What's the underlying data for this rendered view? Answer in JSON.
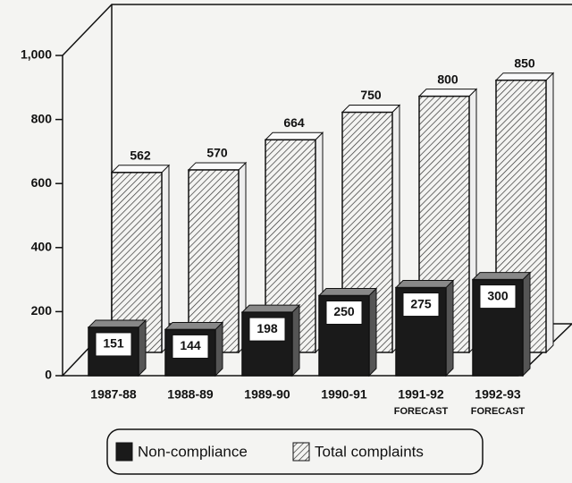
{
  "chart_data": {
    "type": "bar3d",
    "categories": [
      "1987-88",
      "1988-89",
      "1989-90",
      "1990-91",
      "1991-92",
      "1992-93"
    ],
    "category_notes": [
      null,
      null,
      null,
      null,
      "FORECAST",
      "FORECAST"
    ],
    "series": [
      {
        "name": "Non-compliance",
        "color": "#1a1a1a",
        "fill": "solid",
        "values": [
          151,
          144,
          198,
          250,
          275,
          300
        ]
      },
      {
        "name": "Total complaints",
        "color": "#333333",
        "fill": "hatch",
        "values": [
          562,
          570,
          664,
          750,
          800,
          850
        ]
      }
    ],
    "ylim": [
      0,
      1000
    ],
    "yticks": [
      0,
      200,
      400,
      600,
      800,
      {
        "value": 1000,
        "label": "1,000"
      }
    ]
  }
}
